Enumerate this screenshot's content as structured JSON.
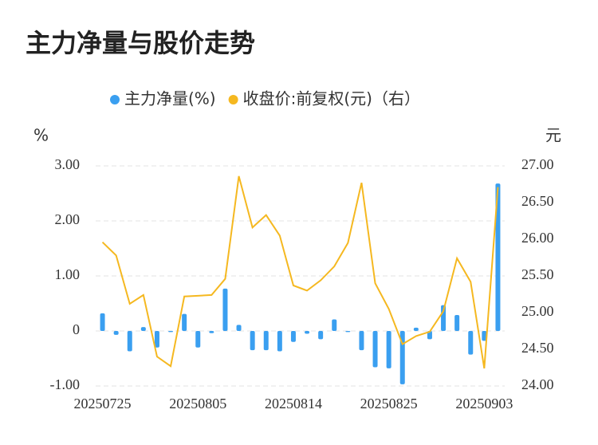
{
  "chart_data": {
    "type": "bar_line",
    "title": "主力净量与股价走势",
    "y_axis_label": "%",
    "y2_axis_label": "元",
    "categories": [
      "20250725",
      null,
      null,
      null,
      null,
      null,
      null,
      "20250805",
      null,
      null,
      null,
      null,
      null,
      null,
      "20250814",
      null,
      null,
      null,
      null,
      null,
      null,
      "20250825",
      null,
      null,
      null,
      null,
      null,
      null,
      "20250903",
      null
    ],
    "series": [
      {
        "name": "主力净量(%)",
        "type": "bar",
        "color": "#3a9ff0",
        "values": [
          0.32,
          -0.07,
          -0.37,
          0.07,
          -0.3,
          -0.02,
          0.31,
          -0.3,
          -0.04,
          0.77,
          0.11,
          -0.35,
          -0.35,
          -0.37,
          -0.2,
          -0.05,
          -0.15,
          0.21,
          -0.02,
          -0.35,
          -0.66,
          -0.68,
          -0.97,
          0.06,
          -0.15,
          0.47,
          0.29,
          -0.43,
          -0.18,
          2.68
        ]
      },
      {
        "name": "收盘价:前复权(元)（右）",
        "type": "line",
        "axis": "y2",
        "color": "#f5b820",
        "values": [
          25.96,
          25.78,
          25.12,
          25.24,
          24.4,
          24.27,
          25.22,
          25.23,
          25.24,
          25.46,
          26.86,
          26.16,
          26.33,
          26.05,
          25.37,
          25.3,
          25.44,
          25.63,
          25.95,
          26.77,
          25.4,
          25.05,
          24.57,
          24.68,
          24.74,
          25.02,
          25.74,
          25.42,
          24.24,
          26.71
        ]
      }
    ],
    "ylim": [
      -1,
      3
    ],
    "yticks": [
      {
        "value": -1,
        "label": "-1.00"
      },
      0,
      {
        "value": 1,
        "label": "1.00"
      },
      {
        "value": 2,
        "label": "2.00"
      },
      {
        "value": 3,
        "label": "3.00"
      }
    ],
    "y2lim": [
      24,
      27
    ],
    "y2ticks": [
      {
        "value": 24,
        "label": "24.00"
      },
      {
        "value": 24.5,
        "label": "24.50"
      },
      {
        "value": 25,
        "label": "25.00"
      },
      {
        "value": 25.5,
        "label": "25.50"
      },
      {
        "value": 26,
        "label": "26.00"
      },
      {
        "value": 26.5,
        "label": "26.50"
      },
      {
        "value": 27,
        "label": "27.00"
      }
    ],
    "grid": true,
    "legend": "top"
  }
}
